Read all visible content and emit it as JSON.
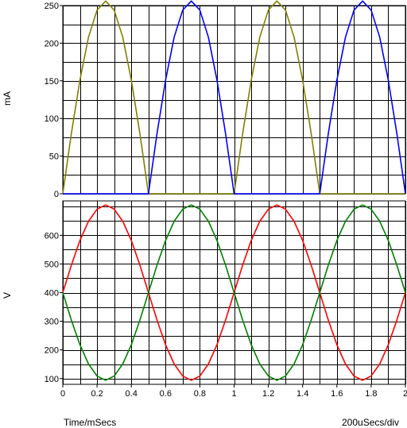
{
  "footer": {
    "time_label": "Time/mSecs",
    "div_label": "200uSecs/div"
  },
  "chart_data": [
    {
      "type": "line",
      "ylabel": "mA",
      "xlim": [
        0,
        2
      ],
      "ylim": [
        0,
        250
      ],
      "yticks": [
        0,
        50,
        100,
        150,
        200,
        250
      ],
      "xgrid_step": 0.1,
      "ygrid_step": 25,
      "grid": true,
      "series": [
        {
          "color": "#808000",
          "x": [
            0,
            0.05,
            0.1,
            0.15,
            0.2,
            0.25,
            0.3,
            0.35,
            0.4,
            0.45,
            0.5,
            0.55,
            0.6,
            0.65,
            0.7,
            0.75,
            0.8,
            0.85,
            0.9,
            0.95,
            1.0,
            1.05,
            1.1,
            1.15,
            1.2,
            1.25,
            1.3,
            1.35,
            1.4,
            1.45,
            1.5,
            1.55,
            1.6,
            1.65,
            1.7,
            1.75,
            1.8,
            1.85,
            1.9,
            1.95,
            2.0
          ],
          "values": [
            0,
            80,
            151,
            208,
            244,
            256,
            244,
            208,
            151,
            80,
            0,
            0,
            0,
            0,
            0,
            0,
            0,
            0,
            0,
            0,
            0,
            80,
            151,
            208,
            244,
            256,
            244,
            208,
            151,
            80,
            0,
            0,
            0,
            0,
            0,
            0,
            0,
            0,
            0,
            0,
            0
          ]
        },
        {
          "color": "#0000ff",
          "x": [
            0,
            0.05,
            0.1,
            0.15,
            0.2,
            0.25,
            0.3,
            0.35,
            0.4,
            0.45,
            0.5,
            0.55,
            0.6,
            0.65,
            0.7,
            0.75,
            0.8,
            0.85,
            0.9,
            0.95,
            1.0,
            1.05,
            1.1,
            1.15,
            1.2,
            1.25,
            1.3,
            1.35,
            1.4,
            1.45,
            1.5,
            1.55,
            1.6,
            1.65,
            1.7,
            1.75,
            1.8,
            1.85,
            1.9,
            1.95,
            2.0
          ],
          "values": [
            0,
            0,
            0,
            0,
            0,
            0,
            0,
            0,
            0,
            0,
            0,
            80,
            151,
            208,
            244,
            256,
            244,
            208,
            151,
            80,
            0,
            0,
            0,
            0,
            0,
            0,
            0,
            0,
            0,
            0,
            0,
            80,
            151,
            208,
            244,
            256,
            244,
            208,
            151,
            80,
            0
          ]
        }
      ]
    },
    {
      "type": "line",
      "ylabel": "V",
      "xlabel": "Time/mSecs",
      "xlim": [
        0,
        2
      ],
      "ylim": [
        80,
        720
      ],
      "yticks": [
        100,
        200,
        300,
        400,
        500,
        600
      ],
      "xticks": [
        0,
        0.2,
        0.4,
        0.6,
        0.8,
        1,
        1.2,
        1.4,
        1.6,
        1.8,
        2
      ],
      "xgrid_step": 0.1,
      "ygrid_step": 50,
      "grid": true,
      "series": [
        {
          "color": "#ff0000",
          "x": [
            0,
            0.05,
            0.1,
            0.15,
            0.2,
            0.25,
            0.3,
            0.35,
            0.4,
            0.45,
            0.5,
            0.55,
            0.6,
            0.65,
            0.7,
            0.75,
            0.8,
            0.85,
            0.9,
            0.95,
            1.0,
            1.05,
            1.1,
            1.15,
            1.2,
            1.25,
            1.3,
            1.35,
            1.4,
            1.45,
            1.5,
            1.55,
            1.6,
            1.65,
            1.7,
            1.75,
            1.8,
            1.85,
            1.9,
            1.95,
            2.0
          ],
          "values": [
            400,
            496,
            582,
            649,
            691,
            706,
            691,
            649,
            582,
            496,
            400,
            304,
            218,
            151,
            109,
            94,
            109,
            151,
            218,
            304,
            400,
            496,
            582,
            649,
            691,
            706,
            691,
            649,
            582,
            496,
            400,
            304,
            218,
            151,
            109,
            94,
            109,
            151,
            218,
            304,
            400
          ]
        },
        {
          "color": "#008000",
          "x": [
            0,
            0.05,
            0.1,
            0.15,
            0.2,
            0.25,
            0.3,
            0.35,
            0.4,
            0.45,
            0.5,
            0.55,
            0.6,
            0.65,
            0.7,
            0.75,
            0.8,
            0.85,
            0.9,
            0.95,
            1.0,
            1.05,
            1.1,
            1.15,
            1.2,
            1.25,
            1.3,
            1.35,
            1.4,
            1.45,
            1.5,
            1.55,
            1.6,
            1.65,
            1.7,
            1.75,
            1.8,
            1.85,
            1.9,
            1.95,
            2.0
          ],
          "values": [
            400,
            304,
            218,
            151,
            109,
            94,
            109,
            151,
            218,
            304,
            400,
            496,
            582,
            649,
            691,
            706,
            691,
            649,
            582,
            496,
            400,
            304,
            218,
            151,
            109,
            94,
            109,
            151,
            218,
            304,
            400,
            496,
            582,
            649,
            691,
            706,
            691,
            649,
            582,
            496,
            400
          ]
        }
      ]
    }
  ]
}
